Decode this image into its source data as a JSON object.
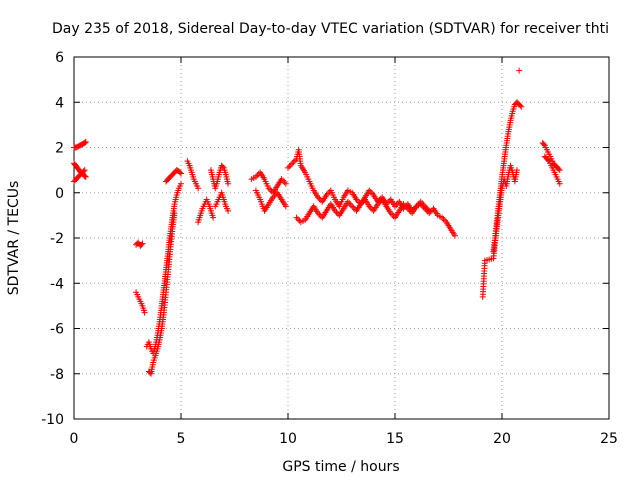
{
  "chart_data": {
    "type": "scatter",
    "title": "Day 235 of 2018, Sidereal Day-to-day VTEC variation (SDTVAR) for receiver thti",
    "xlabel": "GPS time / hours",
    "ylabel": "SDTVAR / TECUs",
    "xlim": [
      0,
      25
    ],
    "ylim": [
      -10,
      6
    ],
    "xticks": [
      0,
      5,
      10,
      15,
      20,
      25
    ],
    "yticks": [
      -10,
      -8,
      -6,
      -4,
      -2,
      0,
      2,
      4,
      6
    ],
    "grid": true,
    "legend": "none",
    "marker": "+",
    "color": "#ff0000",
    "segments": [
      {
        "x": [
          0.0,
          0.1,
          0.2,
          0.3,
          0.4,
          0.5,
          0.55
        ],
        "y": [
          2.0,
          2.0,
          2.05,
          2.1,
          2.15,
          2.2,
          2.25
        ]
      },
      {
        "x": [
          0.0,
          0.08,
          0.16,
          0.24,
          0.32,
          0.4,
          0.48,
          0.55
        ],
        "y": [
          1.3,
          1.2,
          1.1,
          1.0,
          0.9,
          0.85,
          0.75,
          0.7
        ]
      },
      {
        "x": [
          0.0,
          0.1,
          0.2,
          0.3,
          0.4,
          0.5
        ],
        "y": [
          0.5,
          0.6,
          0.7,
          0.8,
          0.9,
          1.0
        ]
      },
      {
        "x": [
          2.9,
          3.0,
          3.1,
          3.2
        ],
        "y": [
          -2.3,
          -2.2,
          -2.35,
          -2.25
        ]
      },
      {
        "x": [
          2.9,
          3.0,
          3.1,
          3.2,
          3.3
        ],
        "y": [
          -4.4,
          -4.6,
          -4.8,
          -5.0,
          -5.3
        ]
      },
      {
        "x": [
          3.4,
          3.5,
          3.6,
          3.7,
          3.8,
          3.9,
          4.0,
          4.1,
          4.2,
          4.3,
          4.4,
          4.5,
          4.6,
          4.7,
          4.8,
          4.9,
          5.0
        ],
        "y": [
          -6.8,
          -6.6,
          -6.9,
          -7.1,
          -6.8,
          -6.3,
          -5.7,
          -5.0,
          -4.2,
          -3.4,
          -2.6,
          -1.8,
          -1.1,
          -0.5,
          -0.1,
          0.2,
          0.4
        ]
      },
      {
        "x": [
          3.5,
          3.6,
          3.7,
          3.8,
          3.9,
          4.0,
          4.1,
          4.2,
          4.3,
          4.4,
          4.5,
          4.6,
          4.7
        ],
        "y": [
          -7.9,
          -8.0,
          -7.5,
          -7.2,
          -6.9,
          -6.5,
          -6.0,
          -5.3,
          -4.4,
          -3.5,
          -2.5,
          -1.6,
          -0.9
        ]
      },
      {
        "x": [
          4.3,
          4.4,
          4.5,
          4.6,
          4.7,
          4.8,
          4.9,
          5.0
        ],
        "y": [
          0.5,
          0.6,
          0.7,
          0.8,
          0.9,
          1.0,
          0.95,
          0.85
        ]
      },
      {
        "x": [
          5.3,
          5.4,
          5.5,
          5.6,
          5.7,
          5.8
        ],
        "y": [
          1.4,
          1.2,
          0.9,
          0.6,
          0.4,
          0.2
        ]
      },
      {
        "x": [
          5.8,
          5.9,
          6.0,
          6.1,
          6.2,
          6.3,
          6.4,
          6.5
        ],
        "y": [
          -1.3,
          -1.0,
          -0.7,
          -0.5,
          -0.3,
          -0.5,
          -0.8,
          -1.1
        ]
      },
      {
        "x": [
          6.4,
          6.5,
          6.6,
          6.7,
          6.8,
          6.9,
          7.0,
          7.1,
          7.2
        ],
        "y": [
          1.0,
          0.6,
          0.2,
          0.5,
          0.9,
          1.2,
          1.1,
          0.8,
          0.4
        ]
      },
      {
        "x": [
          6.6,
          6.7,
          6.8,
          6.9,
          7.0,
          7.1,
          7.2
        ],
        "y": [
          -0.6,
          -0.4,
          -0.2,
          0.0,
          -0.3,
          -0.6,
          -0.8
        ]
      },
      {
        "x": [
          8.3,
          8.5,
          8.7,
          8.9,
          9.1,
          9.3,
          9.5,
          9.7,
          9.9
        ],
        "y": [
          0.6,
          0.7,
          0.9,
          0.6,
          0.2,
          0.0,
          0.3,
          0.6,
          0.4
        ]
      },
      {
        "x": [
          8.5,
          8.7,
          8.9,
          9.1,
          9.3,
          9.5,
          9.7,
          9.9
        ],
        "y": [
          0.1,
          -0.3,
          -0.8,
          -0.5,
          -0.2,
          0.0,
          -0.3,
          -0.6
        ]
      },
      {
        "x": [
          10.0,
          10.2,
          10.4,
          10.5,
          10.6,
          10.8,
          11.0,
          11.2,
          11.4,
          11.6,
          11.8,
          12.0,
          12.2,
          12.4,
          12.6,
          12.8,
          13.0,
          13.2,
          13.4,
          13.6,
          13.8,
          14.0,
          14.2,
          14.4,
          14.6,
          14.8,
          15.0,
          15.2,
          15.4,
          15.6,
          15.8,
          16.0,
          16.2,
          16.4,
          16.6,
          16.8,
          17.0,
          17.2,
          17.4,
          17.6,
          17.8
        ],
        "y": [
          1.1,
          1.3,
          1.5,
          1.9,
          1.2,
          0.9,
          0.5,
          0.1,
          -0.2,
          -0.4,
          -0.1,
          0.1,
          -0.3,
          -0.6,
          -0.2,
          0.1,
          0.0,
          -0.3,
          -0.5,
          -0.2,
          0.1,
          -0.1,
          -0.4,
          -0.2,
          -0.5,
          -0.3,
          -0.6,
          -0.4,
          -0.7,
          -0.5,
          -0.8,
          -0.6,
          -0.5,
          -0.7,
          -0.9,
          -0.7,
          -1.0,
          -1.1,
          -1.3,
          -1.6,
          -1.9
        ]
      },
      {
        "x": [
          10.4,
          10.6,
          10.8,
          11.0,
          11.2,
          11.4,
          11.6,
          11.8,
          12.0,
          12.2,
          12.4,
          12.6,
          12.8,
          13.0,
          13.2,
          13.4,
          13.6,
          13.8,
          14.0,
          14.2,
          14.4,
          14.6,
          14.8,
          15.0,
          15.2,
          15.4,
          15.6,
          15.8,
          16.0,
          16.2,
          16.4,
          16.6
        ],
        "y": [
          -1.1,
          -1.3,
          -1.2,
          -0.9,
          -0.6,
          -0.9,
          -1.1,
          -0.8,
          -0.5,
          -0.8,
          -1.0,
          -0.7,
          -0.4,
          -0.6,
          -0.8,
          -0.5,
          -0.3,
          -0.6,
          -0.8,
          -0.5,
          -0.3,
          -0.6,
          -0.9,
          -1.1,
          -0.8,
          -0.5,
          -0.7,
          -0.9,
          -0.6,
          -0.4,
          -0.6,
          -0.8
        ]
      },
      {
        "x": [
          19.1,
          19.2,
          19.6,
          19.7,
          19.8,
          19.9,
          20.0,
          20.1,
          20.2,
          20.3,
          20.4,
          20.5,
          20.6,
          20.7
        ],
        "y": [
          -4.6,
          -3.0,
          -2.9,
          -2.0,
          -1.2,
          -0.5,
          0.2,
          0.6,
          0.3,
          0.8,
          1.2,
          0.9,
          0.5,
          1.0
        ]
      },
      {
        "x": [
          19.6,
          19.7,
          19.8,
          19.9,
          20.0,
          20.1,
          20.2,
          20.3,
          20.4,
          20.5,
          20.6,
          20.7,
          20.8,
          20.9
        ],
        "y": [
          -2.6,
          -1.8,
          -0.9,
          -0.1,
          0.7,
          1.4,
          2.1,
          2.7,
          3.2,
          3.6,
          3.9,
          4.0,
          3.9,
          3.8
        ]
      },
      {
        "x": [
          20.8
        ],
        "y": [
          5.4
        ]
      },
      {
        "x": [
          21.9,
          22.0,
          22.1,
          22.2,
          22.3,
          22.4,
          22.5,
          22.6,
          22.7
        ],
        "y": [
          2.2,
          2.1,
          1.9,
          1.7,
          1.5,
          1.3,
          1.2,
          1.1,
          1.0
        ]
      },
      {
        "x": [
          22.0,
          22.1,
          22.2,
          22.3,
          22.4,
          22.5,
          22.6,
          22.7
        ],
        "y": [
          1.6,
          1.5,
          1.4,
          1.2,
          1.0,
          0.8,
          0.6,
          0.4
        ]
      }
    ]
  }
}
